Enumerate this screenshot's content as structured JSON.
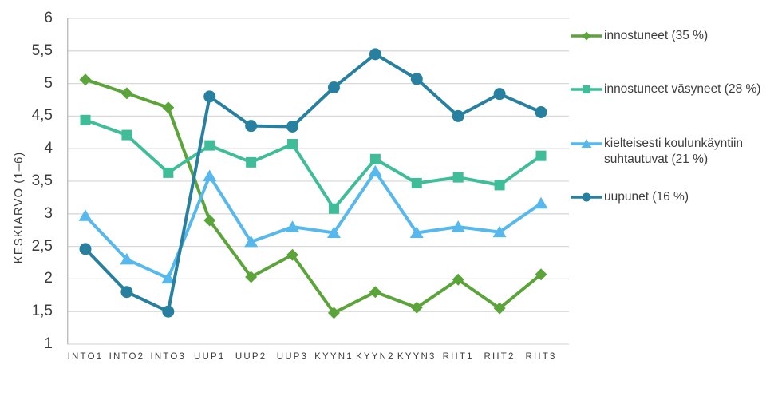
{
  "chart_data": {
    "type": "line",
    "ylabel": "KESKIARVO (1–6)",
    "xlabel": "",
    "ylim": [
      1,
      6
    ],
    "grid": "horizontal",
    "legend_position": "right",
    "ytick_values": [
      6,
      5.5,
      5,
      4.5,
      4,
      3.5,
      3,
      2.5,
      2,
      1.5,
      1
    ],
    "ytick_labels": [
      "6",
      "5,5",
      "5",
      "4,5",
      "4",
      "3,5",
      "3",
      "2,5",
      "2",
      "1,5",
      "1"
    ],
    "categories": [
      "INTO1",
      "INTO2",
      "INTO3",
      "UUP1",
      "UUP2",
      "UUP3",
      "KYYN1",
      "KYYN2",
      "KYYN3",
      "RIIT1",
      "RIIT2",
      "RIIT3"
    ],
    "series": [
      {
        "name": "innostuneet (35 %)",
        "marker": "diamond",
        "color": "#5ba43a",
        "values": [
          5.06,
          4.85,
          4.63,
          2.9,
          2.03,
          2.37,
          1.48,
          1.8,
          1.56,
          1.99,
          1.55,
          2.07
        ]
      },
      {
        "name": "innostuneet väsyneet (28 %)",
        "marker": "square",
        "color": "#3ebd98",
        "values": [
          4.44,
          4.21,
          3.63,
          4.05,
          3.79,
          4.07,
          3.08,
          3.84,
          3.47,
          3.56,
          3.44,
          3.89
        ]
      },
      {
        "name": "kielteisesti koulunkäyntiin suhtautuvat (21 %)",
        "marker": "triangle",
        "color": "#56b8ec",
        "values": [
          2.97,
          2.3,
          2.01,
          3.58,
          2.57,
          2.8,
          2.71,
          3.65,
          2.71,
          2.8,
          2.72,
          3.16
        ]
      },
      {
        "name": "uupunet (16 %)",
        "marker": "circle",
        "color": "#27809f",
        "values": [
          2.46,
          1.8,
          1.5,
          4.8,
          4.35,
          4.34,
          4.94,
          5.45,
          5.07,
          4.5,
          4.84,
          4.56
        ]
      }
    ]
  },
  "colors": {
    "grid": "#d9d9d9",
    "axis": "#bdbdbd",
    "text": "#3d3d3d",
    "background": "#ffffff"
  }
}
